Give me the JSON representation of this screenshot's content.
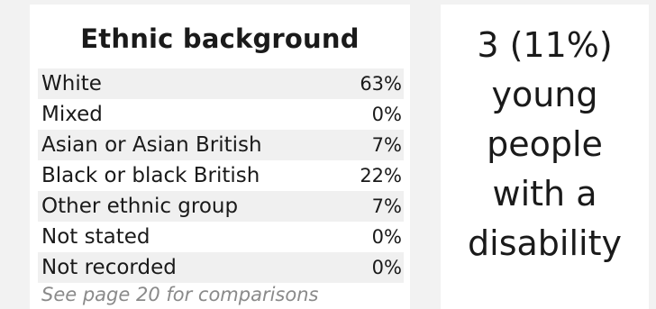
{
  "ethnic": {
    "title": "Ethnic background",
    "rows": [
      {
        "label": "White",
        "value": "63%"
      },
      {
        "label": "Mixed",
        "value": "0%"
      },
      {
        "label": "Asian or Asian British",
        "value": "7%"
      },
      {
        "label": "Black or black British",
        "value": "22%"
      },
      {
        "label": "Other ethnic group",
        "value": "7%"
      },
      {
        "label": "Not stated",
        "value": "0%"
      },
      {
        "label": "Not recorded",
        "value": "0%"
      }
    ],
    "note": "See page 20 for comparisons"
  },
  "disability": {
    "lines": [
      "3 (11%)",
      "young",
      "people",
      "with a",
      "disability"
    ]
  },
  "colors": {
    "background": "#f2f2f2",
    "panel": "#ffffff",
    "row_alt": "#f0f0f0",
    "note_text": "#8a8a8a"
  }
}
